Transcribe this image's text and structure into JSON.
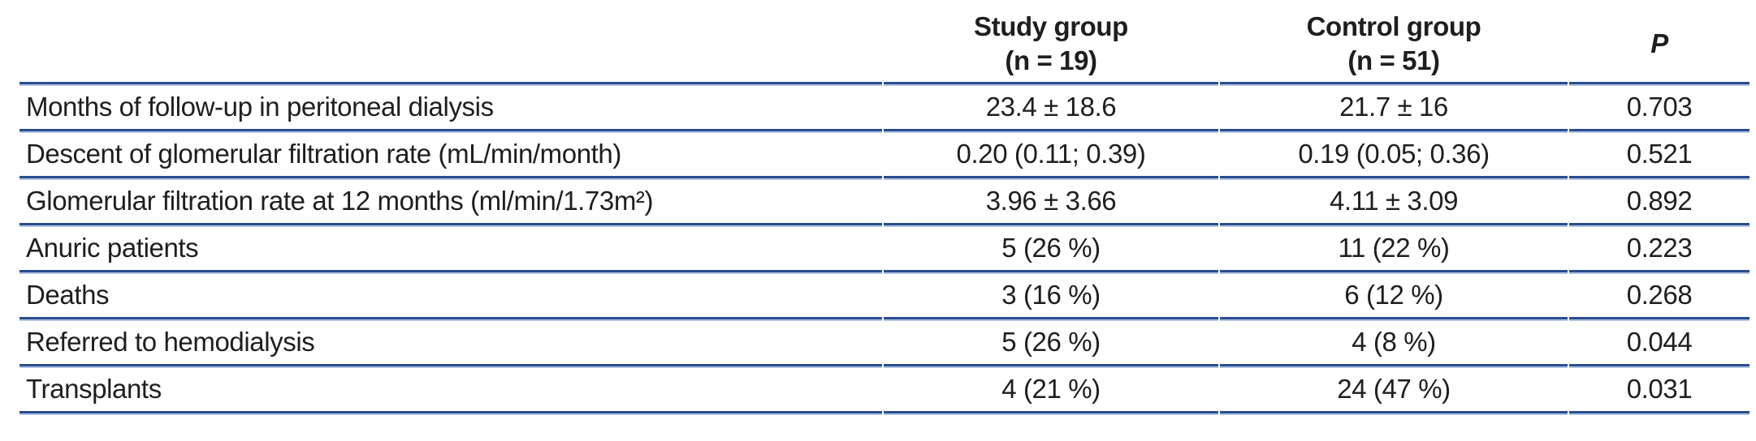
{
  "colors": {
    "rule_dark": "#2a4d8e",
    "rule_light": "#b3c3e2",
    "text": "#1e1e20",
    "background": "#ffffff"
  },
  "table": {
    "columns": [
      {
        "label": ""
      },
      {
        "label": "Study group",
        "sublabel": "(n = 19)"
      },
      {
        "label": "Control group",
        "sublabel": "(n = 51)"
      },
      {
        "label": "P"
      }
    ],
    "rows": [
      {
        "label": "Months of follow-up in peritoneal dialysis",
        "study": "23.4 ± 18.6",
        "control": "21.7 ± 16",
        "p": "0.703"
      },
      {
        "label": "Descent of glomerular filtration rate (mL/min/month)",
        "study": "0.20 (0.11; 0.39)",
        "control": "0.19 (0.05; 0.36)",
        "p": "0.521"
      },
      {
        "label": "Glomerular filtration rate at 12 months (ml/min/1.73m²)",
        "study": "3.96 ± 3.66",
        "control": "4.11 ± 3.09",
        "p": "0.892"
      },
      {
        "label": "Anuric patients",
        "study": "5 (26 %)",
        "control": "11 (22 %)",
        "p": "0.223"
      },
      {
        "label": "Deaths",
        "study": "3 (16 %)",
        "control": "6 (12 %)",
        "p": "0.268"
      },
      {
        "label": "Referred to hemodialysis",
        "study": "5 (26 %)",
        "control": "4 (8 %)",
        "p": "0.044"
      },
      {
        "label": "Transplants",
        "study": "4 (21 %)",
        "control": "24 (47 %)",
        "p": "0.031"
      }
    ]
  }
}
